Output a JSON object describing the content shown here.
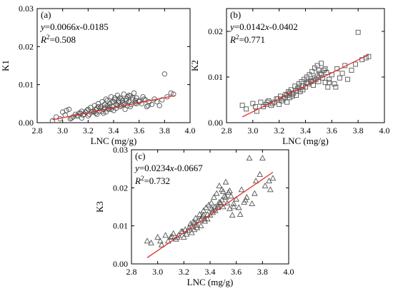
{
  "chart_data": [
    {
      "type": "scatter",
      "panel_label": "(a)",
      "xlabel": "LNC (mg/g)",
      "ylabel": "K1",
      "xlim": [
        2.8,
        4.0
      ],
      "ylim": [
        0.0,
        0.03
      ],
      "xticks": [
        "2.8",
        "3.0",
        "3.2",
        "3.4",
        "3.6",
        "3.8",
        "4.0"
      ],
      "yticks": [
        "0.00",
        "0.01",
        "0.02",
        "0.03"
      ],
      "marker": "circle",
      "fit_color": "#e0302a",
      "equation_prefix": "y",
      "equation_body": "=0.0066",
      "equation_var": "x",
      "equation_tail": "-0.0185",
      "r2_label": "R",
      "r2_sup": "2",
      "r2_value": "=0.508",
      "fit": {
        "slope": 0.0066,
        "intercept": -0.0185,
        "x_range": [
          2.92,
          3.88
        ]
      },
      "x": [
        2.92,
        2.95,
        2.98,
        3.02,
        3.05,
        3.07,
        3.1,
        3.12,
        3.14,
        3.15,
        3.16,
        3.18,
        3.2,
        3.21,
        3.22,
        3.24,
        3.25,
        3.26,
        3.27,
        3.28,
        3.29,
        3.3,
        3.31,
        3.32,
        3.33,
        3.34,
        3.35,
        3.36,
        3.37,
        3.38,
        3.39,
        3.4,
        3.41,
        3.42,
        3.43,
        3.44,
        3.45,
        3.46,
        3.47,
        3.48,
        3.49,
        3.5,
        3.51,
        3.52,
        3.53,
        3.54,
        3.55,
        3.56,
        3.57,
        3.58,
        3.6,
        3.62,
        3.63,
        3.65,
        3.66,
        3.68,
        3.7,
        3.72,
        3.74,
        3.76,
        3.78,
        3.8,
        3.82,
        3.85,
        3.87,
        3.0,
        3.03,
        3.08,
        3.13,
        3.17,
        3.19,
        3.23,
        3.26,
        3.28,
        3.3,
        3.33,
        3.35,
        3.37,
        3.39,
        3.41,
        3.44,
        3.46,
        3.48,
        3.5,
        3.52,
        3.55,
        3.57,
        3.6,
        3.64,
        3.67,
        3.2,
        3.25,
        3.31,
        3.36,
        3.43,
        3.47,
        3.53,
        3.58,
        3.06,
        3.11,
        3.34,
        3.38,
        3.42,
        3.45,
        3.49,
        3.15,
        3.27,
        3.32,
        3.4,
        3.51
      ],
      "y": [
        0.0005,
        0.0015,
        0.001,
        0.002,
        0.0035,
        0.0012,
        0.0022,
        0.0018,
        0.0025,
        0.003,
        0.002,
        0.0028,
        0.0035,
        0.0022,
        0.004,
        0.003,
        0.0045,
        0.0025,
        0.0038,
        0.005,
        0.003,
        0.0042,
        0.0055,
        0.0035,
        0.004,
        0.0062,
        0.0045,
        0.0038,
        0.005,
        0.0068,
        0.0042,
        0.0055,
        0.006,
        0.0048,
        0.0072,
        0.0052,
        0.0065,
        0.0045,
        0.0058,
        0.0075,
        0.005,
        0.0062,
        0.0068,
        0.0055,
        0.007,
        0.0048,
        0.006,
        0.0078,
        0.0052,
        0.0065,
        0.0058,
        0.005,
        0.0068,
        0.006,
        0.0042,
        0.0055,
        0.0048,
        0.0062,
        0.0055,
        0.0045,
        0.006,
        0.0128,
        0.0068,
        0.0078,
        0.0075,
        0.0028,
        0.0032,
        0.0015,
        0.0025,
        0.0022,
        0.0032,
        0.0028,
        0.0035,
        0.0042,
        0.0038,
        0.0048,
        0.0058,
        0.0042,
        0.0055,
        0.0065,
        0.0058,
        0.0062,
        0.0048,
        0.0058,
        0.0072,
        0.0065,
        0.0058,
        0.0055,
        0.0062,
        0.0045,
        0.0018,
        0.0028,
        0.003,
        0.0035,
        0.0045,
        0.0052,
        0.0042,
        0.005,
        0.001,
        0.0018,
        0.0028,
        0.0035,
        0.0038,
        0.0042,
        0.0035,
        0.0012,
        0.0022,
        0.0025,
        0.0032,
        0.0045
      ]
    },
    {
      "type": "scatter",
      "panel_label": "(b)",
      "xlabel": "LNC (mg/g)",
      "ylabel": "K2",
      "xlim": [
        2.8,
        4.0
      ],
      "ylim": [
        0.0,
        0.025
      ],
      "xticks": [
        "2.8",
        "3.0",
        "3.2",
        "3.4",
        "3.6",
        "3.8",
        "4.0"
      ],
      "yticks": [
        "0.00",
        "0.01",
        "0.02"
      ],
      "marker": "square",
      "fit_color": "#e0302a",
      "equation_prefix": "y",
      "equation_body": "=0.0142",
      "equation_var": "x",
      "equation_tail": "-0.0402",
      "r2_label": "R",
      "r2_sup": "2",
      "r2_value": "=0.771",
      "fit": {
        "slope": 0.0142,
        "intercept": -0.0402,
        "x_range": [
          2.92,
          3.88
        ]
      },
      "x": [
        2.92,
        2.95,
        3.0,
        3.03,
        3.06,
        3.08,
        3.1,
        3.12,
        3.14,
        3.16,
        3.18,
        3.2,
        3.21,
        3.22,
        3.24,
        3.25,
        3.26,
        3.27,
        3.28,
        3.29,
        3.3,
        3.31,
        3.32,
        3.33,
        3.34,
        3.35,
        3.36,
        3.37,
        3.38,
        3.39,
        3.4,
        3.41,
        3.42,
        3.43,
        3.44,
        3.45,
        3.46,
        3.47,
        3.48,
        3.49,
        3.5,
        3.51,
        3.52,
        3.53,
        3.54,
        3.55,
        3.56,
        3.57,
        3.58,
        3.6,
        3.62,
        3.64,
        3.66,
        3.68,
        3.7,
        3.72,
        3.75,
        3.78,
        3.8,
        3.83,
        3.86,
        3.88,
        3.15,
        3.23,
        3.3,
        3.36,
        3.42,
        3.47,
        3.52,
        3.58,
        3.63,
        3.02,
        3.11,
        3.19,
        3.26,
        3.33,
        3.38,
        3.44,
        3.49,
        3.55,
        3.28,
        3.35,
        3.41,
        3.46,
        3.5
      ],
      "y": [
        0.0038,
        0.003,
        0.0042,
        0.0025,
        0.0045,
        0.0035,
        0.004,
        0.0048,
        0.0038,
        0.0045,
        0.0052,
        0.004,
        0.0058,
        0.0048,
        0.0055,
        0.0062,
        0.0045,
        0.0068,
        0.0055,
        0.0072,
        0.0058,
        0.0065,
        0.008,
        0.006,
        0.0075,
        0.0085,
        0.0068,
        0.009,
        0.0072,
        0.0095,
        0.0078,
        0.01,
        0.0085,
        0.0105,
        0.009,
        0.0112,
        0.0082,
        0.012,
        0.0095,
        0.0125,
        0.009,
        0.0108,
        0.013,
        0.0098,
        0.0115,
        0.0088,
        0.011,
        0.0078,
        0.0095,
        0.0105,
        0.0085,
        0.0118,
        0.0098,
        0.0108,
        0.0125,
        0.0095,
        0.0115,
        0.0128,
        0.0198,
        0.0138,
        0.0142,
        0.0145,
        0.0042,
        0.0052,
        0.0062,
        0.0072,
        0.0088,
        0.0098,
        0.0105,
        0.0088,
        0.0078,
        0.0035,
        0.0045,
        0.0052,
        0.006,
        0.007,
        0.008,
        0.0092,
        0.0102,
        0.0118,
        0.0065,
        0.0078,
        0.0088,
        0.0092,
        0.0115
      ]
    },
    {
      "type": "scatter",
      "panel_label": "(c)",
      "xlabel": "LNC (mg/g)",
      "ylabel": "K3",
      "xlim": [
        2.8,
        4.0
      ],
      "ylim": [
        0.0,
        0.03
      ],
      "xticks": [
        "2.8",
        "3.0",
        "3.2",
        "3.4",
        "3.6",
        "3.8",
        "4.0"
      ],
      "yticks": [
        "0.00",
        "0.01",
        "0.02",
        "0.03"
      ],
      "marker": "triangle",
      "fit_color": "#e0302a",
      "equation_prefix": "y",
      "equation_body": "=0.0234",
      "equation_var": "x",
      "equation_tail": "-0.0667",
      "r2_label": "R",
      "r2_sup": "2",
      "r2_value": "=0.732",
      "fit": {
        "slope": 0.0234,
        "intercept": -0.0667,
        "x_range": [
          2.92,
          3.88
        ]
      },
      "x": [
        2.92,
        2.95,
        3.0,
        3.03,
        3.06,
        3.08,
        3.1,
        3.12,
        3.14,
        3.16,
        3.18,
        3.2,
        3.21,
        3.22,
        3.24,
        3.25,
        3.26,
        3.27,
        3.28,
        3.29,
        3.3,
        3.31,
        3.32,
        3.33,
        3.34,
        3.35,
        3.36,
        3.37,
        3.38,
        3.39,
        3.4,
        3.41,
        3.42,
        3.43,
        3.44,
        3.45,
        3.46,
        3.47,
        3.48,
        3.49,
        3.5,
        3.51,
        3.52,
        3.53,
        3.54,
        3.55,
        3.56,
        3.57,
        3.58,
        3.6,
        3.62,
        3.64,
        3.66,
        3.68,
        3.7,
        3.72,
        3.75,
        3.78,
        3.8,
        3.82,
        3.85,
        3.88,
        3.15,
        3.23,
        3.3,
        3.36,
        3.42,
        3.47,
        3.52,
        3.58,
        3.63,
        3.02,
        3.11,
        3.19,
        3.26,
        3.33,
        3.38,
        3.44,
        3.49,
        3.55,
        3.28,
        3.35,
        3.41,
        3.46,
        3.5,
        3.67,
        3.74,
        3.86
      ],
      "y": [
        0.006,
        0.0055,
        0.007,
        0.005,
        0.0075,
        0.006,
        0.007,
        0.008,
        0.0065,
        0.0075,
        0.0085,
        0.007,
        0.009,
        0.0078,
        0.0095,
        0.0105,
        0.0082,
        0.011,
        0.009,
        0.012,
        0.0095,
        0.0115,
        0.013,
        0.01,
        0.0125,
        0.014,
        0.0112,
        0.0148,
        0.0118,
        0.0155,
        0.0128,
        0.016,
        0.0135,
        0.0175,
        0.014,
        0.0185,
        0.0148,
        0.0205,
        0.016,
        0.0195,
        0.015,
        0.0178,
        0.0215,
        0.016,
        0.0188,
        0.0145,
        0.0178,
        0.0128,
        0.0158,
        0.017,
        0.0148,
        0.0195,
        0.0162,
        0.0175,
        0.0278,
        0.0158,
        0.0218,
        0.0235,
        0.0278,
        0.0205,
        0.0218,
        0.0225,
        0.007,
        0.0088,
        0.0102,
        0.0118,
        0.0142,
        0.0162,
        0.0175,
        0.015,
        0.013,
        0.006,
        0.0072,
        0.0085,
        0.0098,
        0.0115,
        0.013,
        0.015,
        0.0168,
        0.0192,
        0.0108,
        0.0128,
        0.0145,
        0.0155,
        0.019,
        0.0168,
        0.0185,
        0.0195
      ]
    }
  ]
}
